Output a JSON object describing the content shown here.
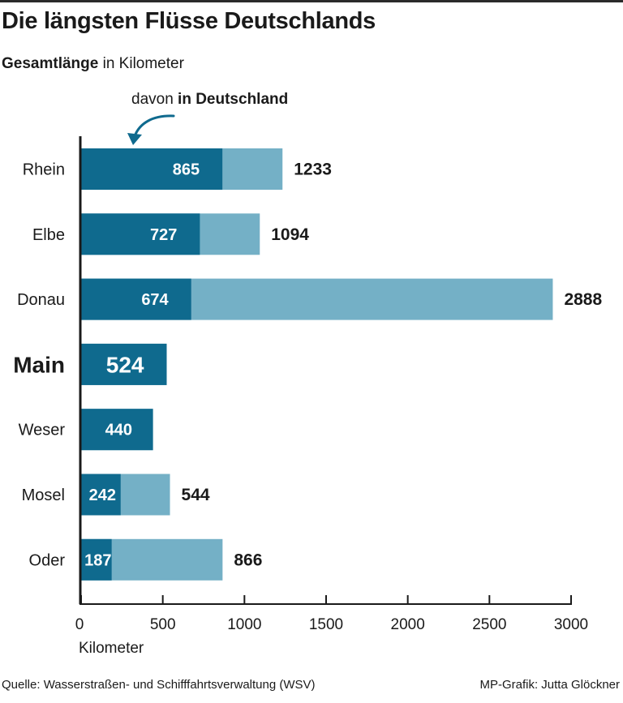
{
  "header": {
    "title": "Die längsten Flüsse Deutschlands",
    "subtitle_bold": "Gesamtlänge",
    "subtitle_rest": " in Kilometer"
  },
  "legend": {
    "prefix": "davon ",
    "bold": "in Deutschland"
  },
  "chart_data": {
    "type": "bar",
    "orientation": "horizontal",
    "stacked": "overlay",
    "categories": [
      "Rhein",
      "Elbe",
      "Donau",
      "Main",
      "Weser",
      "Mosel",
      "Oder"
    ],
    "highlight": "Main",
    "series": [
      {
        "name": "Gesamtlänge",
        "values": [
          1233,
          1094,
          2888,
          524,
          440,
          544,
          866
        ],
        "color": "#74b0c6"
      },
      {
        "name": "davon in Deutschland",
        "values": [
          865,
          727,
          674,
          524,
          440,
          242,
          187
        ],
        "color": "#0f6a8e"
      }
    ],
    "total_labels": [
      "1233",
      "1094",
      "2888",
      "",
      "",
      "544",
      "866"
    ],
    "inner_labels": [
      "865",
      "727",
      "674",
      "524",
      "440",
      "242",
      "187"
    ],
    "xlim": [
      0,
      3000
    ],
    "xticks": [
      0,
      500,
      1000,
      1500,
      2000,
      2500,
      3000
    ],
    "xtick_labels": [
      "0",
      "500",
      "1000",
      "1500",
      "2000",
      "2500",
      "3000"
    ],
    "xlabel": "Kilometer",
    "grid": false
  },
  "footer": {
    "source": "Quelle: Wasserstraßen- und Schifffahrtsverwaltung (WSV)",
    "credit": "MP-Grafik: Jutta Glöckner"
  },
  "colors": {
    "dark": "#0f6a8e",
    "light": "#74b0c6",
    "axis": "#1a1a1a"
  }
}
